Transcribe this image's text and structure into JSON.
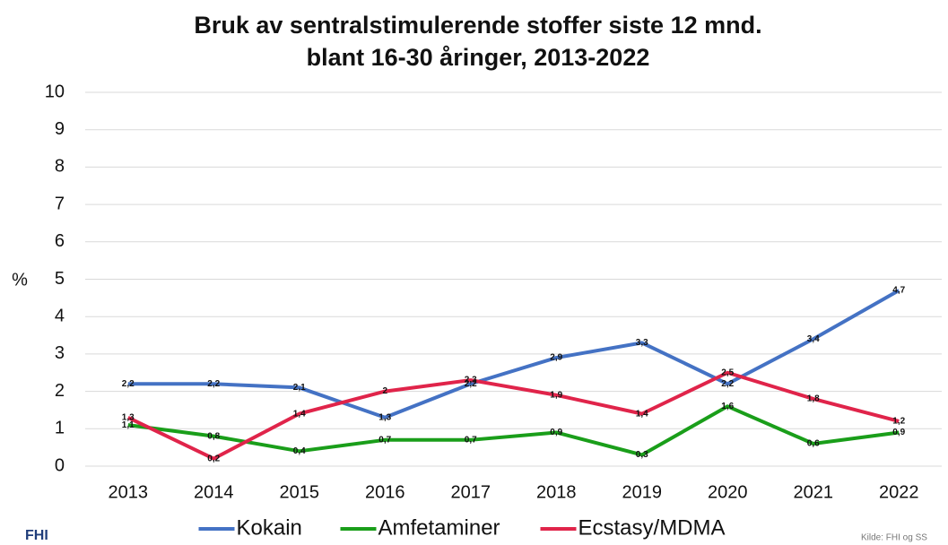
{
  "chart_data": {
    "type": "line",
    "title": [
      "Bruk av sentralstimulerende stoffer siste 12 mnd.",
      "blant 16-30 åringer, 2013-2022"
    ],
    "ylabel": "%",
    "categories": [
      "2013",
      "2014",
      "2015",
      "2016",
      "2017",
      "2018",
      "2019",
      "2020",
      "2021",
      "2022"
    ],
    "series": [
      {
        "name": "Kokain",
        "color": "#4472c4",
        "values": [
          2.2,
          2.2,
          2.1,
          1.3,
          2.2,
          2.9,
          3.3,
          2.2,
          3.4,
          4.7
        ],
        "value_labels": [
          "2,2",
          "2,2",
          "2,1",
          "1,3",
          "2,2",
          "2,9",
          "3,3",
          "2,2",
          "3,4",
          "4,7"
        ]
      },
      {
        "name": "Amfetaminer",
        "color": "#1a9e1a",
        "values": [
          1.1,
          0.8,
          0.4,
          0.7,
          0.7,
          0.9,
          0.3,
          1.6,
          0.6,
          0.9
        ],
        "value_labels": [
          "1,1",
          "0,8",
          "0,4",
          "0,7",
          "0,7",
          "0,9",
          "0,3",
          "1,6",
          "0,6",
          "0,9"
        ]
      },
      {
        "name": "Ecstasy/MDMA",
        "color": "#e0244a",
        "values": [
          1.3,
          0.2,
          1.4,
          2,
          2.3,
          1.9,
          1.4,
          2.5,
          1.8,
          1.2
        ],
        "value_labels": [
          "1,3",
          "0,2",
          "1,4",
          "2",
          "2,3",
          "1,9",
          "1,4",
          "2,5",
          "1,8",
          "1,2"
        ]
      }
    ],
    "ylim": [
      0,
      10
    ],
    "yticks": [
      0,
      1,
      2,
      3,
      4,
      5,
      6,
      7,
      8,
      9,
      10
    ],
    "grid": true,
    "legend": "bottom",
    "logo": "FHI",
    "source": "Kilde: FHI og SS"
  }
}
